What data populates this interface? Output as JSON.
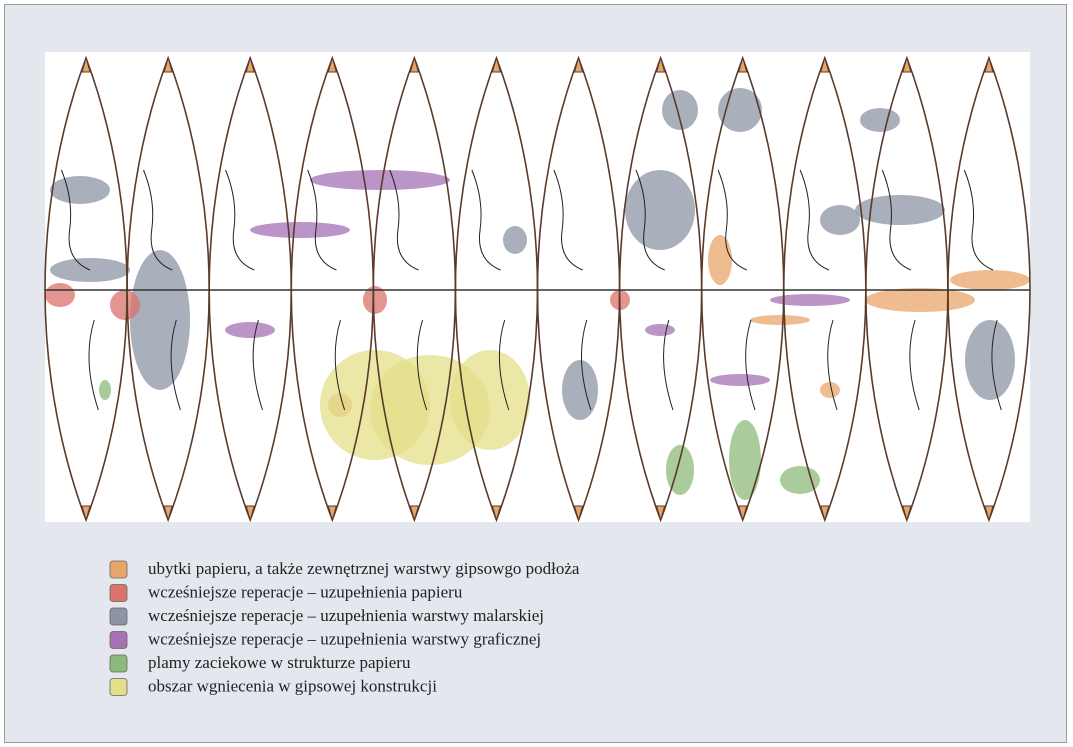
{
  "legend": [
    {
      "label": "ubytki papieru, a także zewnętrznej warstwy gipsowgo podłoża",
      "color": "#e8a66a"
    },
    {
      "label": "wcześniejsze reperacje – uzupełnienia papieru",
      "color": "#d9736b"
    },
    {
      "label": "wcześniejsze reperacje – uzupełnienia warstwy malarskiej",
      "color": "#8d94a6"
    },
    {
      "label": "wcześniejsze reperacje – uzupełnienia warstwy graficznej",
      "color": "#a672b5"
    },
    {
      "label": "plamy zaciekowe w strukturze papieru",
      "color": "#8dba7a"
    },
    {
      "label": "obszar wgniecenia w gipsowej konstrukcji",
      "color": "#e3df8a"
    }
  ]
}
